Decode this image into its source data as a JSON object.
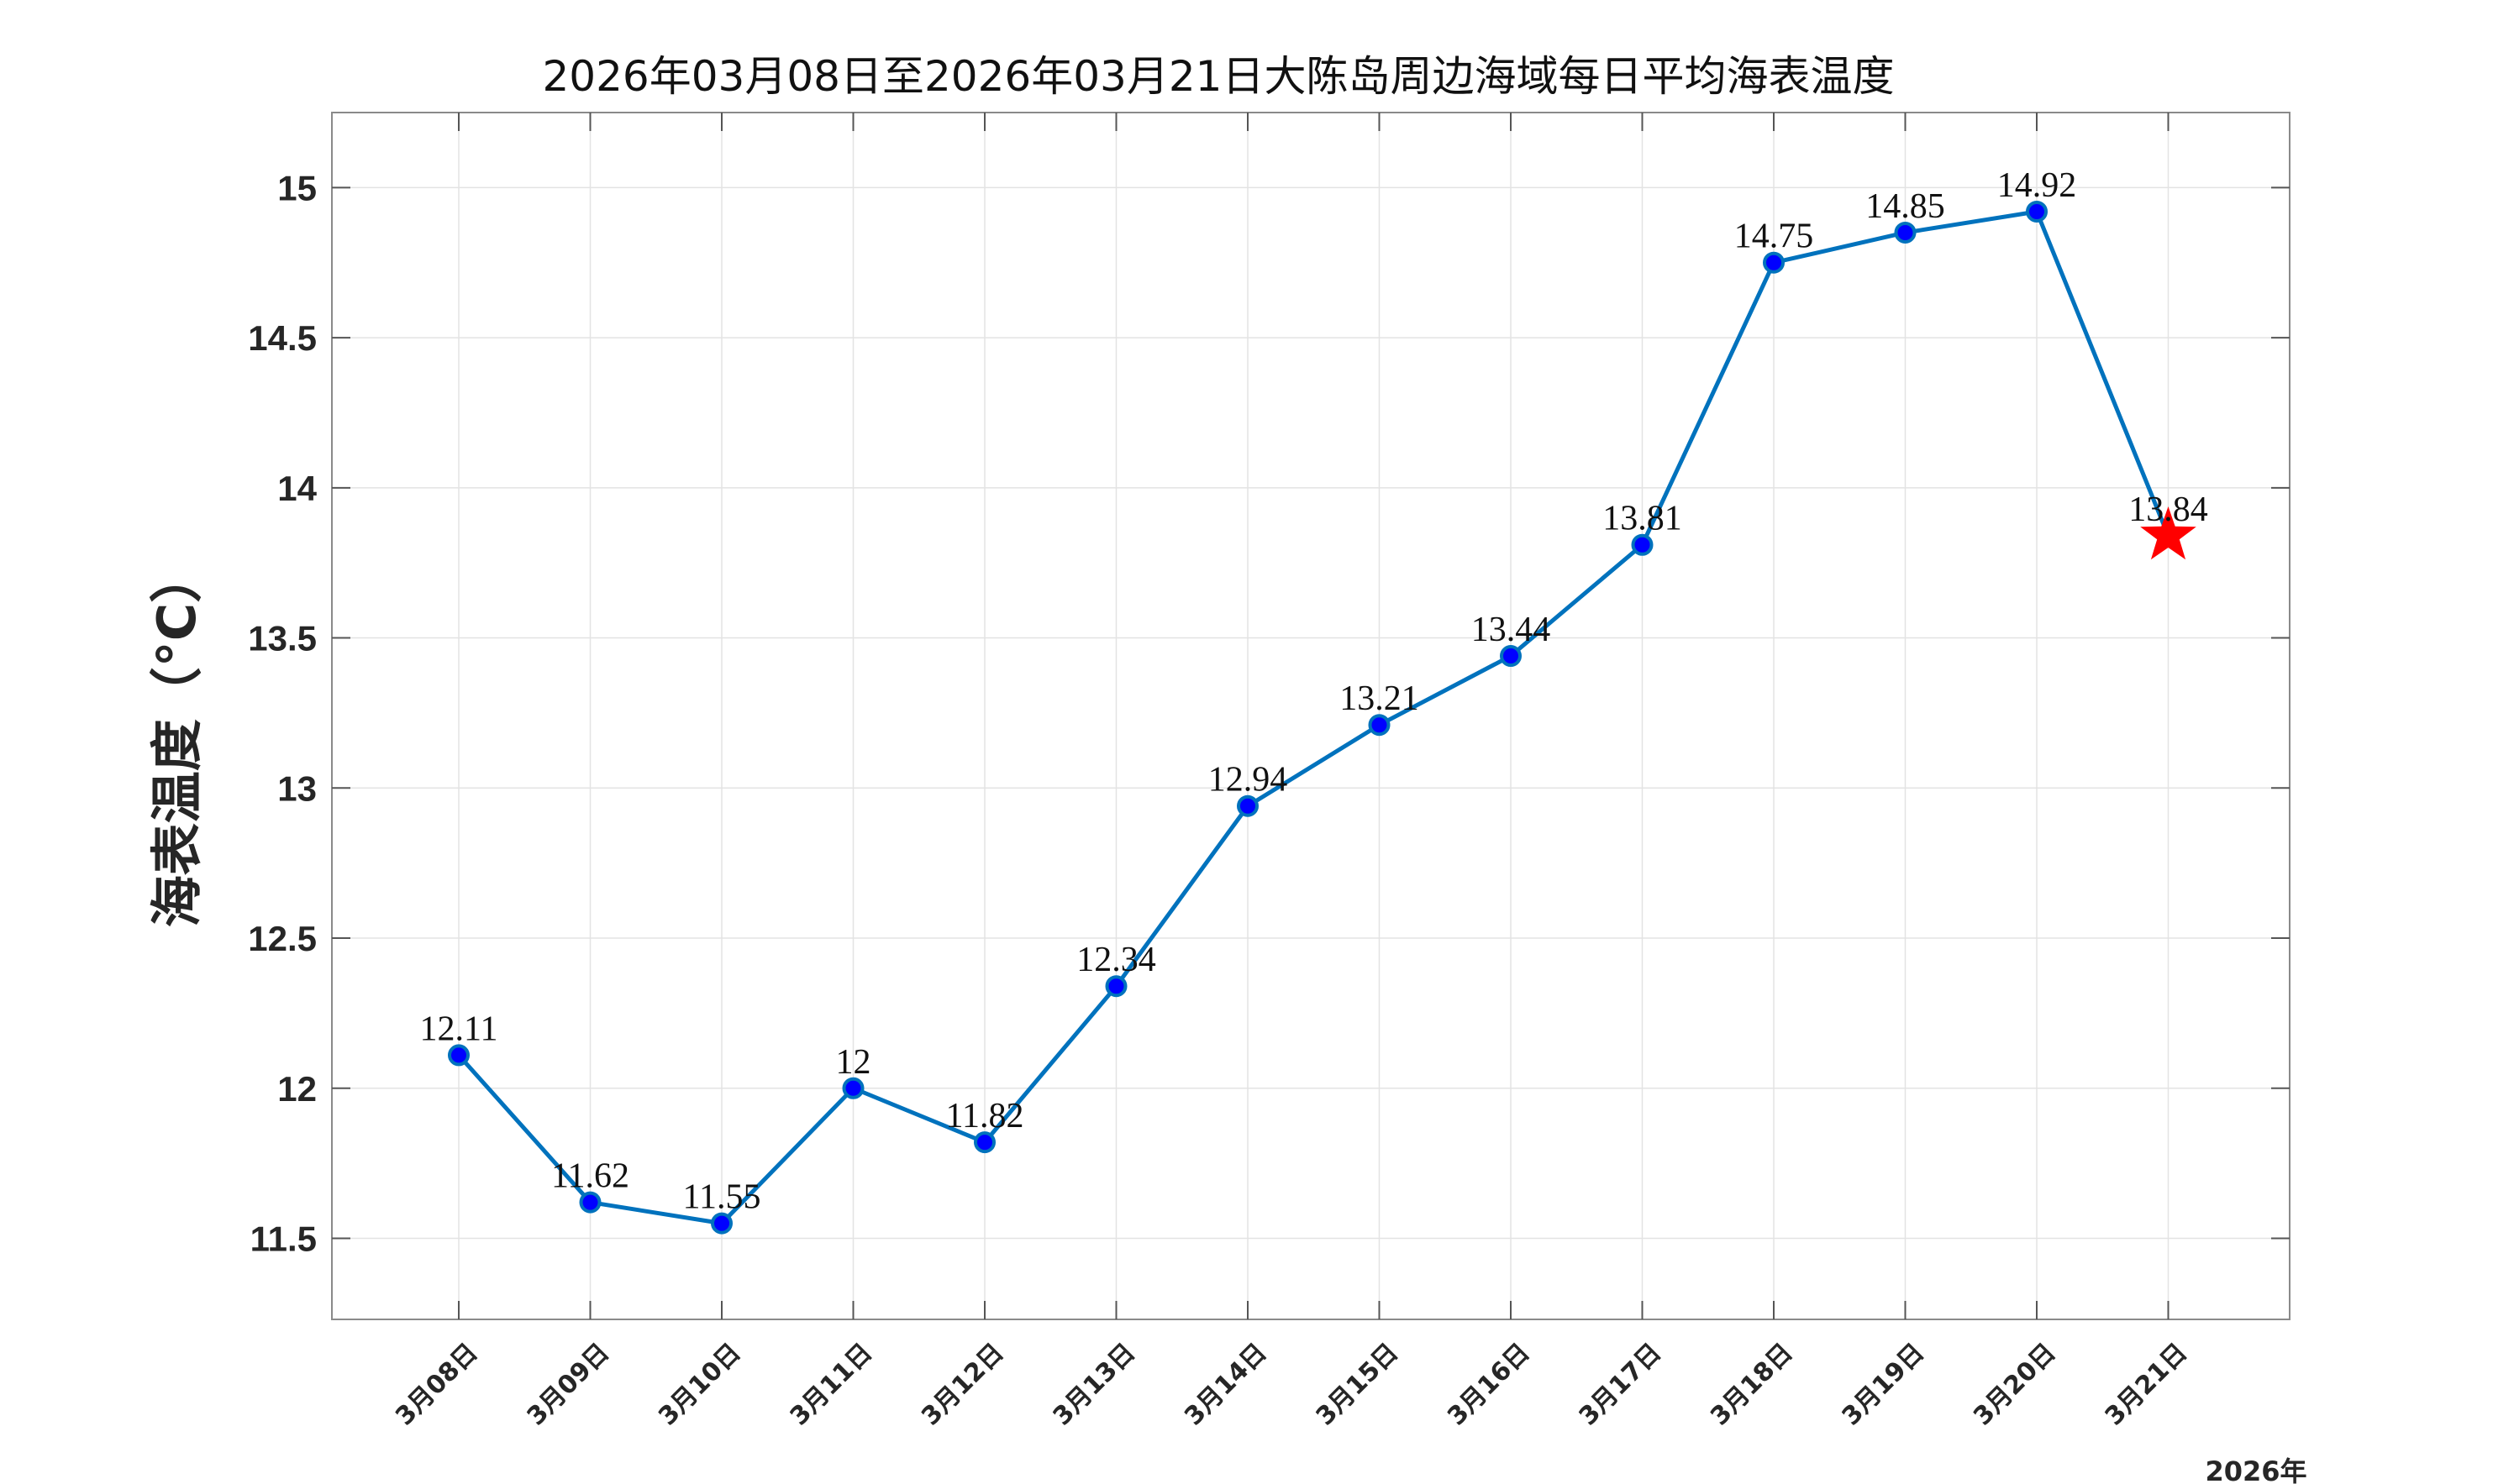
{
  "chart_data": {
    "type": "line",
    "title": "2026年03月08日至2026年03月21日大陈岛周边海域每日平均海表温度",
    "ylabel": "海表温度（°C）",
    "xlabel": "",
    "year_label": "2026年",
    "categories": [
      "3月08日",
      "3月09日",
      "3月10日",
      "3月11日",
      "3月12日",
      "3月13日",
      "3月14日",
      "3月15日",
      "3月16日",
      "3月17日",
      "3月18日",
      "3月19日",
      "3月20日",
      "3月21日"
    ],
    "values": [
      12.11,
      11.62,
      11.55,
      12.0,
      11.82,
      12.34,
      12.94,
      13.21,
      13.44,
      13.81,
      14.75,
      14.85,
      14.92,
      13.84
    ],
    "data_labels": [
      "12.11",
      "11.62",
      "11.55",
      "12",
      "11.82",
      "12.34",
      "12.94",
      "13.21",
      "13.44",
      "13.81",
      "14.75",
      "14.85",
      "14.92",
      "13.84"
    ],
    "ylim": [
      11.23,
      15.25
    ],
    "yticks": [
      11.5,
      12,
      12.5,
      13,
      13.5,
      14,
      14.5,
      15
    ],
    "ytick_labels": [
      "11.5",
      "12",
      "12.5",
      "13",
      "13.5",
      "14",
      "14.5",
      "15"
    ],
    "grid": true,
    "line_color": "#0072BD",
    "marker_color": "#0000FF",
    "highlight_last": {
      "marker": "star",
      "color": "#FF0000"
    }
  }
}
